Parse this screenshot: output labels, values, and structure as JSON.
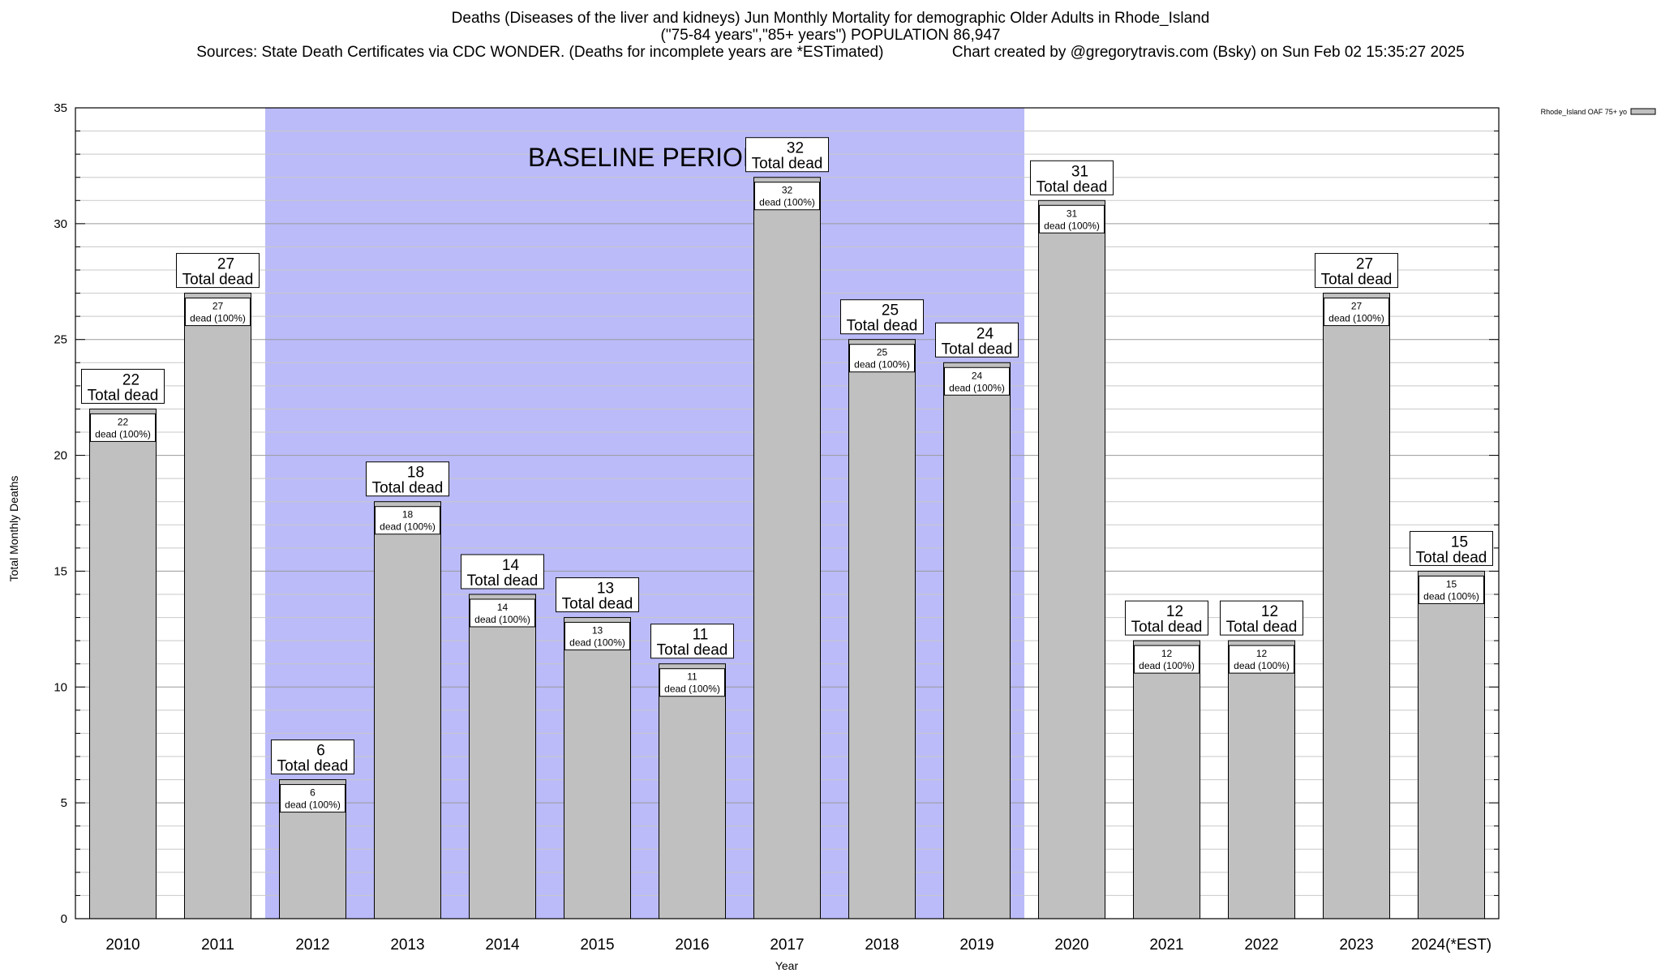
{
  "titles": {
    "line1": "Deaths (Diseases of the liver and kidneys) Jun Monthly Mortality for demographic Older Adults in Rhode_Island",
    "line2": "(\"75-84 years\",\"85+ years\") POPULATION 86,947",
    "line3": "Sources: State Death Certificates via CDC WONDER. (Deaths for incomplete years are *ESTimated)                Chart created by @gregorytravis.com (Bsky) on Sun Feb 02 15:35:27 2025"
  },
  "chart_data": {
    "type": "bar",
    "title": "Deaths (Diseases of the liver and kidneys) Jun Monthly Mortality for demographic Older Adults in Rhode_Island",
    "xlabel": "Year",
    "ylabel": "Total Monthly Deaths",
    "ylim": [
      0,
      35
    ],
    "yticks": [
      0,
      5,
      10,
      15,
      20,
      25,
      30,
      35
    ],
    "grid": true,
    "legend": {
      "placement": "top-right",
      "label": "Rhode_Island OAF 75+ yo"
    },
    "baseline": {
      "label": "BASELINE PERIOD",
      "from": "2012",
      "to": "2019",
      "color": "#bbbbf9"
    },
    "bar_color": "#c0c0c0",
    "categories": [
      "2010",
      "2011",
      "2012",
      "2013",
      "2014",
      "2015",
      "2016",
      "2017",
      "2018",
      "2019",
      "2020",
      "2021",
      "2022",
      "2023",
      "2024(*EST)"
    ],
    "series": [
      {
        "name": "Rhode_Island OAF 75+ yo",
        "values": [
          22,
          27,
          6,
          18,
          14,
          13,
          11,
          32,
          25,
          24,
          31,
          12,
          12,
          27,
          15
        ]
      }
    ],
    "total_label_suffix": "Total dead",
    "inner_label_suffix": "dead (100%)"
  }
}
